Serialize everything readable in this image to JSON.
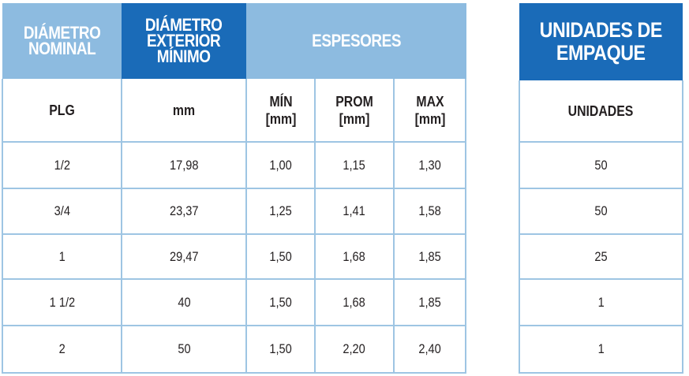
{
  "main_table": {
    "headers": {
      "diametro_nominal": [
        "DIÁMETRO",
        "NOMINAL"
      ],
      "diametro_exterior": [
        "DIÁMETRO",
        "EXTERIOR",
        "MÍNIMO"
      ],
      "espesores": "ESPESORES"
    },
    "subheaders": {
      "plg": "PLG",
      "mm": "mm",
      "min": [
        "MÍN",
        "[mm]"
      ],
      "prom": [
        "PROM",
        "[mm]"
      ],
      "max": [
        "MAX",
        "[mm]"
      ]
    },
    "rows": [
      {
        "nominal": "1/2",
        "exterior": "17,98",
        "min": "1,00",
        "prom": "1,15",
        "max": "1,30"
      },
      {
        "nominal": "3/4",
        "exterior": "23,37",
        "min": "1,25",
        "prom": "1,41",
        "max": "1,58"
      },
      {
        "nominal": "1",
        "exterior": "29,47",
        "min": "1,50",
        "prom": "1,68",
        "max": "1,85"
      },
      {
        "nominal": "1 1/2",
        "exterior": "40",
        "min": "1,50",
        "prom": "1,68",
        "max": "1,85"
      },
      {
        "nominal": "2",
        "exterior": "50",
        "min": "1,50",
        "prom": "2,20",
        "max": "2,40"
      }
    ]
  },
  "side_table": {
    "header": [
      "UNIDADES DE",
      "EMPAQUE"
    ],
    "subheader": "UNIDADES",
    "rows": [
      "50",
      "50",
      "25",
      "1",
      "1"
    ]
  },
  "colors": {
    "header_light": "#8dbbe0",
    "header_dark": "#1a6bb8",
    "grid_lines": "#9ec5e3"
  }
}
